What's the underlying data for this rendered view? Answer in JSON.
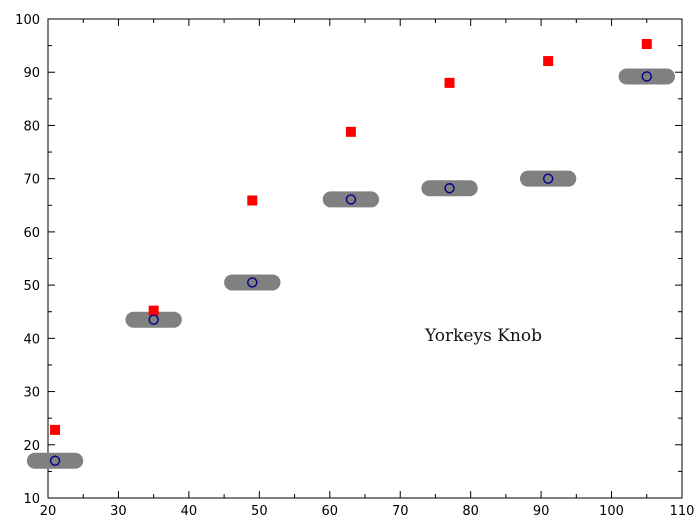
{
  "chart_data": {
    "type": "scatter",
    "annotation": "Yorkeys Knob",
    "xlim": [
      20,
      110
    ],
    "ylim": [
      10,
      100
    ],
    "xticks": [
      20,
      30,
      40,
      50,
      60,
      70,
      80,
      90,
      100,
      110
    ],
    "yticks": [
      10,
      20,
      30,
      40,
      50,
      60,
      70,
      80,
      90,
      100
    ],
    "grid": false,
    "series": [
      {
        "marker": "square",
        "color": "#ff0000",
        "x": [
          21,
          35,
          49,
          63,
          77,
          91,
          105
        ],
        "y": [
          22.8,
          45.2,
          65.9,
          78.8,
          88.0,
          92.1,
          95.3
        ]
      },
      {
        "marker": "open-circle",
        "color": "#00008b",
        "x": [
          21,
          35,
          49,
          63,
          77,
          91,
          105
        ],
        "y": [
          17.0,
          43.5,
          50.5,
          66.1,
          68.2,
          70.0,
          89.2
        ]
      }
    ],
    "range_bars": {
      "color": "#808080",
      "items": [
        {
          "x_start": 17,
          "x_end": 25,
          "y": 17.0
        },
        {
          "x_start": 31,
          "x_end": 39,
          "y": 43.5
        },
        {
          "x_start": 45,
          "x_end": 53,
          "y": 50.5
        },
        {
          "x_start": 59,
          "x_end": 67,
          "y": 66.1
        },
        {
          "x_start": 73,
          "x_end": 81,
          "y": 68.2
        },
        {
          "x_start": 87,
          "x_end": 95,
          "y": 70.0
        },
        {
          "x_start": 101,
          "x_end": 109,
          "y": 89.2
        }
      ]
    }
  }
}
